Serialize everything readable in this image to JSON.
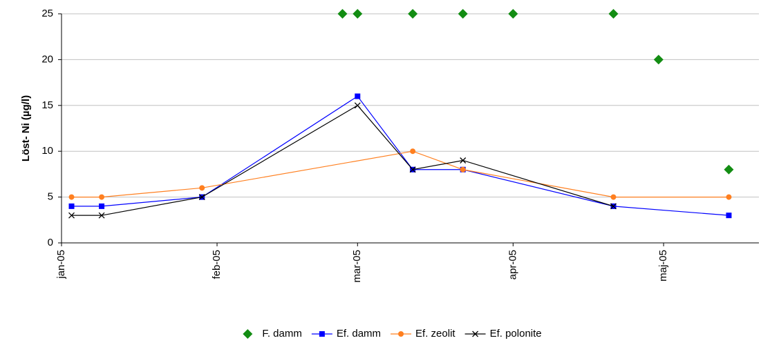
{
  "chart_data": {
    "type": "line",
    "y_label": "Löst- Ni (µg/l)",
    "xlim": [
      0,
      139
    ],
    "xticks": [
      {
        "value": 0,
        "label": "jan-05"
      },
      {
        "value": 31,
        "label": "feb-05"
      },
      {
        "value": 59,
        "label": "mar-05"
      },
      {
        "value": 90,
        "label": "apr-05"
      },
      {
        "value": 120,
        "label": "maj-05"
      }
    ],
    "ylim": [
      0,
      25
    ],
    "yticks": [
      0,
      5,
      10,
      15,
      20,
      25
    ],
    "grid": true,
    "legend": "bottom",
    "series": [
      {
        "name": "F. damm",
        "color": "#138d13",
        "marker": "diamond",
        "line": false,
        "x": [
          56,
          59,
          70,
          80,
          90,
          110,
          119,
          133
        ],
        "values": [
          25,
          25,
          25,
          25,
          25,
          25,
          20,
          8
        ]
      },
      {
        "name": "Ef. damm",
        "color": "#0000ff",
        "marker": "square",
        "line": true,
        "x": [
          2,
          8,
          28,
          59,
          70,
          80,
          110,
          133
        ],
        "values": [
          4,
          4,
          5,
          16,
          8,
          8,
          4,
          3
        ]
      },
      {
        "name": "Ef. zeolit",
        "color": "#ff7f1f",
        "marker": "circle",
        "line": true,
        "x": [
          2,
          8,
          28,
          70,
          80,
          110,
          133
        ],
        "values": [
          5,
          5,
          6,
          10,
          8,
          5,
          5
        ]
      },
      {
        "name": "Ef.  polonite",
        "color": "#000000",
        "marker": "x",
        "line": true,
        "x": [
          2,
          8,
          28,
          59,
          70,
          80,
          110
        ],
        "values": [
          3,
          3,
          5,
          15,
          8,
          9,
          4
        ]
      }
    ]
  }
}
